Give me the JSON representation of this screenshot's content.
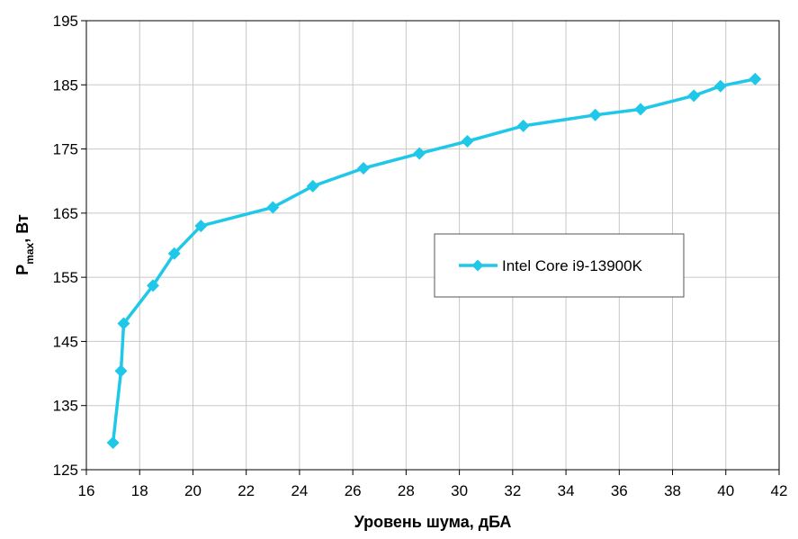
{
  "chart_data": {
    "type": "line",
    "xlabel": "Уровень шума, дБА",
    "ylabel": {
      "main": "P",
      "sub": "max",
      "rest": ", Вт"
    },
    "xlim": [
      16,
      42
    ],
    "ylim": [
      125,
      195
    ],
    "xticks": [
      16,
      18,
      20,
      22,
      24,
      26,
      28,
      30,
      32,
      34,
      36,
      38,
      40,
      42
    ],
    "yticks": [
      125,
      135,
      145,
      155,
      165,
      175,
      185,
      195
    ],
    "grid": true,
    "legend_position": "center-right",
    "series": [
      {
        "name": "Intel Core i9-13900K",
        "color": "#1fc8e8",
        "marker": "diamond",
        "x": [
          17.0,
          17.3,
          17.4,
          18.5,
          19.3,
          20.3,
          23.0,
          24.5,
          26.4,
          28.5,
          30.3,
          32.4,
          35.1,
          36.8,
          38.8,
          39.8,
          41.1
        ],
        "y": [
          129.2,
          140.4,
          147.8,
          153.7,
          158.7,
          163.0,
          165.9,
          169.2,
          172.0,
          174.3,
          176.2,
          178.6,
          180.3,
          181.2,
          183.3,
          184.8,
          185.9
        ]
      }
    ]
  }
}
